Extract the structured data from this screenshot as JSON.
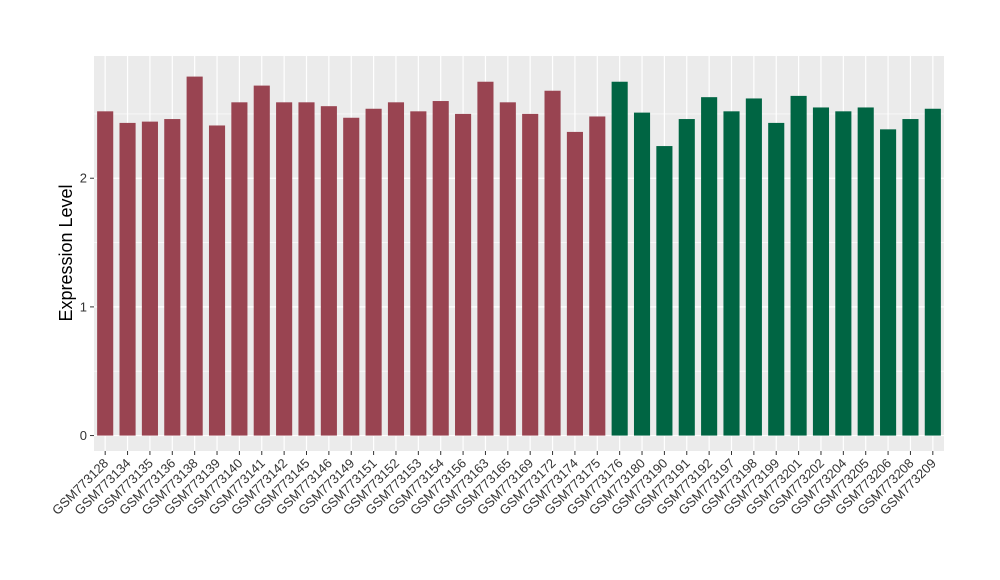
{
  "chart_data": {
    "type": "bar",
    "title": "",
    "xlabel": "",
    "ylabel": "Expression Level",
    "ylim": [
      -0.12,
      2.95
    ],
    "yticks": [
      0,
      1,
      2
    ],
    "grid": true,
    "panel_background": "#EBEBEB",
    "grid_color": "#FFFFFF",
    "categories": [
      "GSM773128",
      "GSM773134",
      "GSM773135",
      "GSM773136",
      "GSM773138",
      "GSM773139",
      "GSM773140",
      "GSM773141",
      "GSM773142",
      "GSM773145",
      "GSM773146",
      "GSM773149",
      "GSM773151",
      "GSM773152",
      "GSM773153",
      "GSM773154",
      "GSM773156",
      "GSM773163",
      "GSM773165",
      "GSM773169",
      "GSM773172",
      "GSM773174",
      "GSM773175",
      "GSM773176",
      "GSM773180",
      "GSM773190",
      "GSM773191",
      "GSM773192",
      "GSM773197",
      "GSM773198",
      "GSM773199",
      "GSM773201",
      "GSM773202",
      "GSM773204",
      "GSM773205",
      "GSM773206",
      "GSM773208",
      "GSM773209"
    ],
    "values": [
      2.52,
      2.43,
      2.44,
      2.46,
      2.79,
      2.41,
      2.59,
      2.72,
      2.59,
      2.59,
      2.56,
      2.47,
      2.54,
      2.59,
      2.52,
      2.6,
      2.5,
      2.75,
      2.59,
      2.5,
      2.68,
      2.36,
      2.48,
      2.75,
      2.51,
      2.25,
      2.46,
      2.63,
      2.52,
      2.62,
      2.43,
      2.64,
      2.55,
      2.52,
      2.55,
      2.38,
      2.46,
      2.54
    ],
    "groups": [
      0,
      0,
      0,
      0,
      0,
      0,
      0,
      0,
      0,
      0,
      0,
      0,
      0,
      0,
      0,
      0,
      0,
      0,
      0,
      0,
      0,
      0,
      0,
      1,
      1,
      1,
      1,
      1,
      1,
      1,
      1,
      1,
      1,
      1,
      1,
      1,
      1,
      1
    ],
    "group_colors": [
      "#994451",
      "#006543"
    ]
  }
}
